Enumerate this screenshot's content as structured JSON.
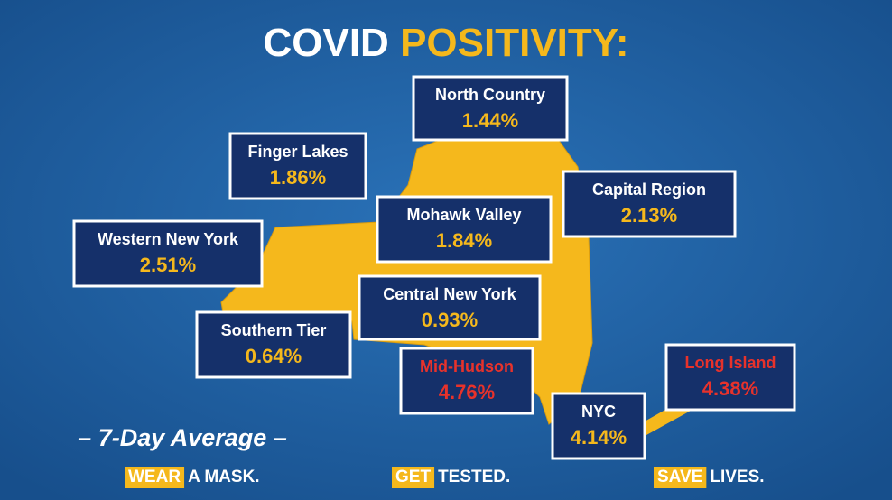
{
  "header": {
    "title_white": "COVID",
    "title_yellow": "POSITIVITY:"
  },
  "regions": [
    {
      "name": "North Country",
      "value": "1.44%",
      "name_color": "#ffffff",
      "value_color": "#f5b81c"
    },
    {
      "name": "Finger Lakes",
      "value": "1.86%",
      "name_color": "#ffffff",
      "value_color": "#f5b81c"
    },
    {
      "name": "Capital Region",
      "value": "2.13%",
      "name_color": "#ffffff",
      "value_color": "#f5b81c"
    },
    {
      "name": "Mohawk Valley",
      "value": "1.84%",
      "name_color": "#ffffff",
      "value_color": "#f5b81c"
    },
    {
      "name": "Western New York",
      "value": "2.51%",
      "name_color": "#ffffff",
      "value_color": "#f5b81c"
    },
    {
      "name": "Central New York",
      "value": "0.93%",
      "name_color": "#ffffff",
      "value_color": "#f5b81c"
    },
    {
      "name": "Southern Tier",
      "value": "0.64%",
      "name_color": "#ffffff",
      "value_color": "#f5b81c"
    },
    {
      "name": "Mid-Hudson",
      "value": "4.76%",
      "name_color": "#e8322b",
      "value_color": "#e8322b"
    },
    {
      "name": "Long Island",
      "value": "4.38%",
      "name_color": "#e8322b",
      "value_color": "#e8322b"
    },
    {
      "name": "NYC",
      "value": "4.14%",
      "name_color": "#ffffff",
      "value_color": "#f5b81c"
    }
  ],
  "footer": {
    "note": "– 7-Day Average –",
    "slogans": [
      {
        "highlight": "WEAR",
        "rest": "A MASK."
      },
      {
        "highlight": "GET",
        "rest": "TESTED."
      },
      {
        "highlight": "SAVE",
        "rest": "LIVES."
      }
    ]
  }
}
